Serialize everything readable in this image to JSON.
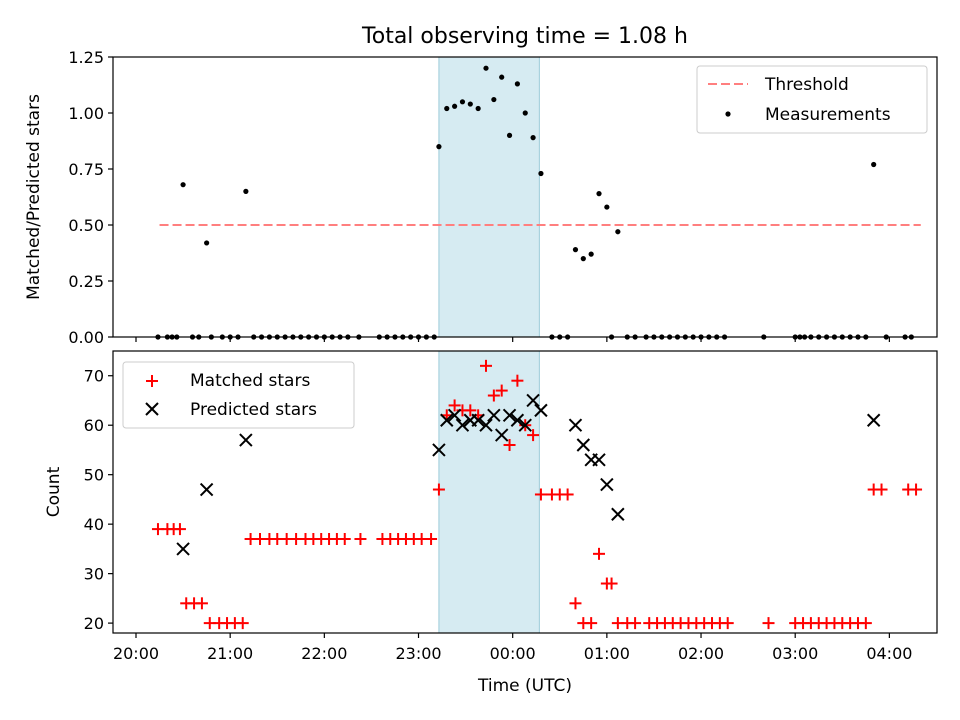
{
  "chart_data": [
    {
      "type": "scatter",
      "title": "Total observing time = 1.08 h",
      "xlabel": "",
      "ylabel": "Matched/Predicted stars",
      "xlim": [
        "20:00",
        "04:45"
      ],
      "ylim": [
        0,
        1.25
      ],
      "yticks": [
        "0.00",
        "0.25",
        "0.50",
        "0.75",
        "1.00",
        "1.25"
      ],
      "x_ticks_visible": false,
      "legend": {
        "placement": "top-right",
        "entries": [
          "Threshold",
          "Measurements"
        ]
      },
      "shaded_interval": {
        "x0": "23:13",
        "x1": "00:17",
        "color": "#add8e6"
      },
      "threshold": {
        "name": "Threshold",
        "x0": "20:15",
        "x1": "04:20",
        "y": 0.5,
        "color": "#ff7f7f",
        "style": "dashed"
      },
      "series": [
        {
          "name": "Measurements",
          "marker": "dot",
          "color": "#000000",
          "points": [
            [
              "20:14",
              0
            ],
            [
              "20:20",
              0
            ],
            [
              "20:23",
              0
            ],
            [
              "20:26",
              0
            ],
            [
              "20:30",
              0.68
            ],
            [
              "20:36",
              0
            ],
            [
              "20:40",
              0
            ],
            [
              "20:45",
              0.42
            ],
            [
              "20:48",
              0
            ],
            [
              "20:55",
              0
            ],
            [
              "21:00",
              0
            ],
            [
              "21:05",
              0
            ],
            [
              "21:10",
              0.65
            ],
            [
              "21:15",
              0
            ],
            [
              "21:20",
              0
            ],
            [
              "21:25",
              0
            ],
            [
              "21:30",
              0
            ],
            [
              "21:35",
              0
            ],
            [
              "21:40",
              0
            ],
            [
              "21:45",
              0
            ],
            [
              "21:50",
              0
            ],
            [
              "21:55",
              0
            ],
            [
              "22:00",
              0
            ],
            [
              "22:05",
              0
            ],
            [
              "22:10",
              0
            ],
            [
              "22:15",
              0
            ],
            [
              "22:22",
              0
            ],
            [
              "22:35",
              0
            ],
            [
              "22:40",
              0
            ],
            [
              "22:45",
              0
            ],
            [
              "22:50",
              0
            ],
            [
              "22:55",
              0
            ],
            [
              "23:00",
              0
            ],
            [
              "23:05",
              0
            ],
            [
              "23:10",
              0
            ],
            [
              "23:13",
              0.85
            ],
            [
              "23:18",
              1.02
            ],
            [
              "23:23",
              1.03
            ],
            [
              "23:28",
              1.05
            ],
            [
              "23:33",
              1.04
            ],
            [
              "23:38",
              1.02
            ],
            [
              "23:43",
              1.2
            ],
            [
              "23:48",
              1.06
            ],
            [
              "23:53",
              1.16
            ],
            [
              "23:58",
              0.9
            ],
            [
              "00:03",
              1.13
            ],
            [
              "00:08",
              1.0
            ],
            [
              "00:13",
              0.89
            ],
            [
              "00:18",
              0.73
            ],
            [
              "00:25",
              0
            ],
            [
              "00:30",
              0
            ],
            [
              "00:35",
              0
            ],
            [
              "00:40",
              0.39
            ],
            [
              "00:45",
              0.35
            ],
            [
              "00:50",
              0.37
            ],
            [
              "00:55",
              0.64
            ],
            [
              "01:00",
              0.58
            ],
            [
              "01:03",
              0
            ],
            [
              "01:07",
              0.47
            ],
            [
              "01:13",
              0
            ],
            [
              "01:18",
              0
            ],
            [
              "01:25",
              0
            ],
            [
              "01:30",
              0
            ],
            [
              "01:35",
              0
            ],
            [
              "01:40",
              0
            ],
            [
              "01:45",
              0
            ],
            [
              "01:50",
              0
            ],
            [
              "01:55",
              0
            ],
            [
              "02:00",
              0
            ],
            [
              "02:05",
              0
            ],
            [
              "02:10",
              0
            ],
            [
              "02:15",
              0
            ],
            [
              "02:40",
              0
            ],
            [
              "03:00",
              0
            ],
            [
              "03:03",
              0
            ],
            [
              "03:06",
              0
            ],
            [
              "03:10",
              0
            ],
            [
              "03:15",
              0
            ],
            [
              "03:20",
              0
            ],
            [
              "03:25",
              0
            ],
            [
              "03:30",
              0
            ],
            [
              "03:35",
              0
            ],
            [
              "03:40",
              0
            ],
            [
              "03:45",
              0
            ],
            [
              "03:50",
              0.77
            ],
            [
              "03:58",
              0
            ],
            [
              "04:10",
              0
            ],
            [
              "04:14",
              0
            ]
          ]
        }
      ]
    },
    {
      "type": "scatter",
      "title": "",
      "xlabel": "Time (UTC)",
      "ylabel": "Count",
      "xlim": [
        "20:00",
        "04:45"
      ],
      "ylim": [
        18,
        75
      ],
      "xticks": [
        "20:00",
        "21:00",
        "22:00",
        "23:00",
        "00:00",
        "01:00",
        "02:00",
        "03:00",
        "04:00"
      ],
      "yticks": [
        "20",
        "30",
        "40",
        "50",
        "60",
        "70"
      ],
      "legend": {
        "placement": "top-left",
        "entries": [
          "Matched stars",
          "Predicted stars"
        ]
      },
      "shaded_interval": {
        "x0": "23:13",
        "x1": "00:17",
        "color": "#add8e6"
      },
      "series": [
        {
          "name": "Matched stars",
          "marker": "plus",
          "color": "#ff0000",
          "points": [
            [
              "20:14",
              39
            ],
            [
              "20:20",
              39
            ],
            [
              "20:24",
              39
            ],
            [
              "20:28",
              39
            ],
            [
              "20:32",
              24
            ],
            [
              "20:37",
              24
            ],
            [
              "20:42",
              24
            ],
            [
              "20:47",
              20
            ],
            [
              "20:53",
              20
            ],
            [
              "20:58",
              20
            ],
            [
              "21:03",
              20
            ],
            [
              "21:08",
              20
            ],
            [
              "21:13",
              37
            ],
            [
              "21:19",
              37
            ],
            [
              "21:25",
              37
            ],
            [
              "21:30",
              37
            ],
            [
              "21:36",
              37
            ],
            [
              "21:42",
              37
            ],
            [
              "21:48",
              37
            ],
            [
              "21:53",
              37
            ],
            [
              "21:58",
              37
            ],
            [
              "22:03",
              37
            ],
            [
              "22:08",
              37
            ],
            [
              "22:13",
              37
            ],
            [
              "22:23",
              37
            ],
            [
              "22:37",
              37
            ],
            [
              "22:42",
              37
            ],
            [
              "22:47",
              37
            ],
            [
              "22:52",
              37
            ],
            [
              "22:57",
              37
            ],
            [
              "23:02",
              37
            ],
            [
              "23:08",
              37
            ],
            [
              "23:13",
              47
            ],
            [
              "23:18",
              62
            ],
            [
              "23:23",
              64
            ],
            [
              "23:28",
              63
            ],
            [
              "23:33",
              63
            ],
            [
              "23:38",
              62
            ],
            [
              "23:43",
              72
            ],
            [
              "23:48",
              66
            ],
            [
              "23:53",
              67
            ],
            [
              "23:58",
              56
            ],
            [
              "00:03",
              69
            ],
            [
              "00:08",
              60
            ],
            [
              "00:13",
              58
            ],
            [
              "00:18",
              46
            ],
            [
              "00:25",
              46
            ],
            [
              "00:30",
              46
            ],
            [
              "00:35",
              46
            ],
            [
              "00:40",
              24
            ],
            [
              "00:45",
              20
            ],
            [
              "00:50",
              20
            ],
            [
              "00:55",
              34
            ],
            [
              "01:00",
              28
            ],
            [
              "01:03",
              28
            ],
            [
              "01:07",
              20
            ],
            [
              "01:13",
              20
            ],
            [
              "01:18",
              20
            ],
            [
              "01:27",
              20
            ],
            [
              "01:32",
              20
            ],
            [
              "01:37",
              20
            ],
            [
              "01:42",
              20
            ],
            [
              "01:47",
              20
            ],
            [
              "01:52",
              20
            ],
            [
              "01:57",
              20
            ],
            [
              "02:02",
              20
            ],
            [
              "02:07",
              20
            ],
            [
              "02:12",
              20
            ],
            [
              "02:17",
              20
            ],
            [
              "02:43",
              20
            ],
            [
              "03:00",
              20
            ],
            [
              "03:05",
              20
            ],
            [
              "03:10",
              20
            ],
            [
              "03:15",
              20
            ],
            [
              "03:20",
              20
            ],
            [
              "03:25",
              20
            ],
            [
              "03:30",
              20
            ],
            [
              "03:35",
              20
            ],
            [
              "03:40",
              20
            ],
            [
              "03:45",
              20
            ],
            [
              "03:50",
              47
            ],
            [
              "03:55",
              47
            ],
            [
              "04:12",
              47
            ],
            [
              "04:17",
              47
            ]
          ]
        },
        {
          "name": "Predicted stars",
          "marker": "x",
          "color": "#000000",
          "points": [
            [
              "20:30",
              35
            ],
            [
              "20:45",
              47
            ],
            [
              "21:10",
              57
            ],
            [
              "23:13",
              55
            ],
            [
              "23:18",
              61
            ],
            [
              "23:23",
              62
            ],
            [
              "23:28",
              60
            ],
            [
              "23:33",
              61
            ],
            [
              "23:38",
              61
            ],
            [
              "23:43",
              60
            ],
            [
              "23:48",
              62
            ],
            [
              "23:53",
              58
            ],
            [
              "23:58",
              62
            ],
            [
              "00:03",
              61
            ],
            [
              "00:08",
              60
            ],
            [
              "00:13",
              65
            ],
            [
              "00:18",
              63
            ],
            [
              "00:40",
              60
            ],
            [
              "00:45",
              56
            ],
            [
              "00:50",
              53
            ],
            [
              "00:55",
              53
            ],
            [
              "01:00",
              48
            ],
            [
              "01:07",
              42
            ],
            [
              "03:50",
              61
            ]
          ]
        }
      ]
    }
  ]
}
